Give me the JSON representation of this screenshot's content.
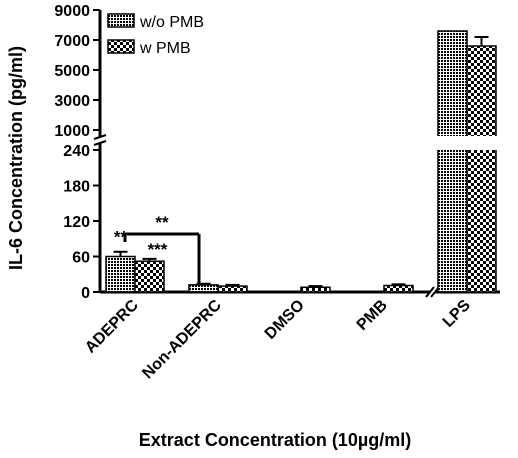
{
  "chart_data": {
    "type": "bar",
    "title": "",
    "xlabel": "Extract Concentration (10µg/ml)",
    "ylabel": "IL-6 Concentration (pg/ml)",
    "categories": [
      "ADEPRC",
      "Non-ADEPRC",
      "DMSO",
      "PMB",
      "LPS"
    ],
    "series": [
      {
        "name": "w/o PMB",
        "values": [
          60,
          12,
          0,
          0,
          7600
        ],
        "errors": [
          8,
          2,
          0,
          0,
          0
        ]
      },
      {
        "name": "w PMB",
        "values": [
          52,
          10,
          8,
          11,
          6600
        ],
        "errors": [
          4,
          2,
          2,
          2,
          600
        ]
      }
    ],
    "y_axis": {
      "broken": true,
      "lower_range": [
        0,
        240
      ],
      "lower_ticks": [
        "0",
        "60",
        "120",
        "180",
        "240"
      ],
      "upper_range": [
        1000,
        9000
      ],
      "upper_ticks": [
        "1000",
        "3000",
        "5000",
        "7000",
        "9000"
      ]
    },
    "legend_position": "top-left",
    "annotations": [
      {
        "text": "**",
        "target": "ADEPRC w/o PMB"
      },
      {
        "text": "***",
        "target": "ADEPRC w PMB"
      },
      {
        "text": "**",
        "target": "ADEPRC vs Non-ADEPRC bracket"
      }
    ]
  }
}
